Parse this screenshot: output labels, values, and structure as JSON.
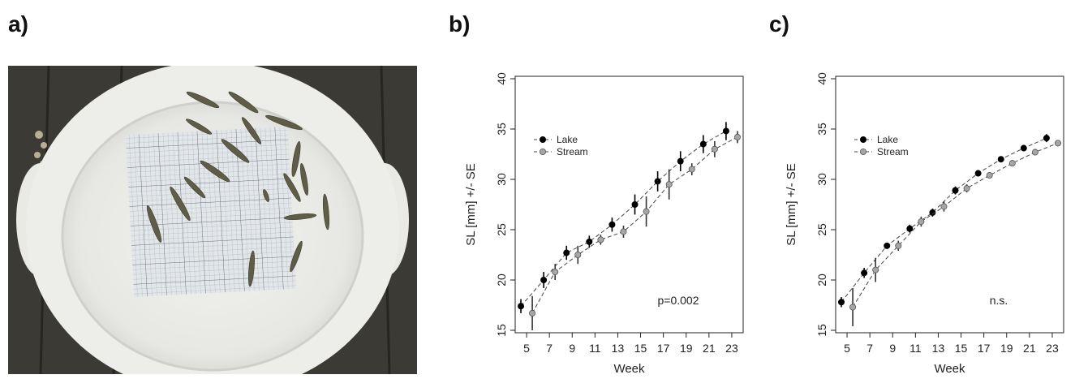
{
  "panels": {
    "a": "a)",
    "b": "b)",
    "c": "c)"
  },
  "colors": {
    "lake": "#000000",
    "stream": "#a6a6a6",
    "line": "#444444"
  },
  "chart_data": [
    {
      "type": "line",
      "panel": "b",
      "xlabel": "Week",
      "ylabel": "SL [mm] +/- SE",
      "xticks": [
        5,
        7,
        9,
        11,
        13,
        15,
        17,
        19,
        21,
        23
      ],
      "yticks": [
        15,
        20,
        25,
        30,
        35,
        40
      ],
      "xlim": [
        4,
        24
      ],
      "ylim": [
        15,
        40
      ],
      "legend_position": "upper-left",
      "annotation": "p=0.002",
      "series": [
        {
          "name": "Lake",
          "x": [
            4.5,
            6.5,
            8.5,
            10.5,
            12.5,
            14.5,
            16.5,
            18.5,
            20.5,
            22.5
          ],
          "y": [
            17.4,
            20.0,
            22.7,
            23.8,
            25.5,
            27.5,
            29.8,
            31.8,
            33.5,
            34.8
          ],
          "se": [
            0.7,
            0.8,
            0.7,
            0.6,
            0.7,
            1.0,
            1.0,
            1.0,
            0.9,
            0.9
          ]
        },
        {
          "name": "Stream",
          "x": [
            5.5,
            7.5,
            9.5,
            11.5,
            13.5,
            15.5,
            17.5,
            19.5,
            21.5,
            23.5
          ],
          "y": [
            16.7,
            20.8,
            22.5,
            24.0,
            24.8,
            26.8,
            29.5,
            31.0,
            33.0,
            34.2
          ],
          "se": [
            1.7,
            0.8,
            0.9,
            0.5,
            0.6,
            1.5,
            1.5,
            0.6,
            0.8,
            0.6
          ]
        }
      ]
    },
    {
      "type": "line",
      "panel": "c",
      "xlabel": "Week",
      "ylabel": "SL [mm] +/- SE",
      "xticks": [
        5,
        7,
        9,
        11,
        13,
        15,
        17,
        19,
        21,
        23
      ],
      "yticks": [
        15,
        20,
        25,
        30,
        35,
        40
      ],
      "xlim": [
        4,
        24
      ],
      "ylim": [
        15,
        40
      ],
      "legend_position": "upper-left",
      "annotation": "n.s.",
      "series": [
        {
          "name": "Lake",
          "x": [
            4.5,
            6.5,
            8.5,
            10.5,
            12.5,
            14.5,
            16.5,
            18.5,
            20.5,
            22.5
          ],
          "y": [
            17.8,
            20.7,
            23.4,
            25.1,
            26.7,
            28.9,
            30.6,
            32.0,
            33.1,
            34.1
          ],
          "se": [
            0.5,
            0.5,
            0.3,
            0.4,
            0.4,
            0.4,
            0.3,
            0.3,
            0.3,
            0.4
          ]
        },
        {
          "name": "Stream",
          "x": [
            5.5,
            7.5,
            9.5,
            11.5,
            13.5,
            15.5,
            17.5,
            19.5,
            21.5,
            23.5
          ],
          "y": [
            17.3,
            21.0,
            23.4,
            25.8,
            27.3,
            29.1,
            30.4,
            31.6,
            32.7,
            33.6
          ],
          "se": [
            1.9,
            1.2,
            0.5,
            0.5,
            0.5,
            0.4,
            0.3,
            0.3,
            0.3,
            0.3
          ]
        }
      ]
    }
  ]
}
